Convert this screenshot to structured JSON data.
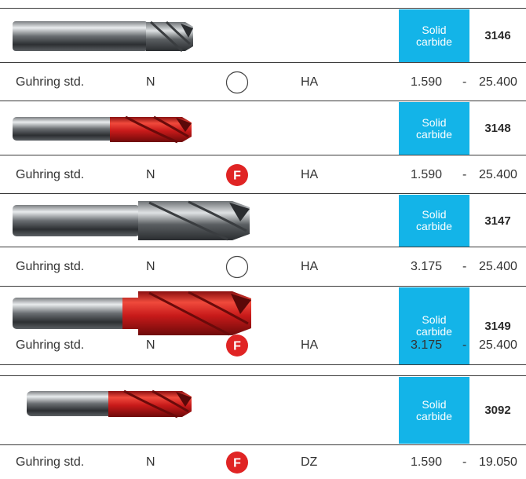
{
  "material_label_line1": "Solid",
  "material_label_line2": "carbide",
  "colors": {
    "material_bg": "#13b4e8",
    "coating_red": "#e02424",
    "rule": "#3a3a3a"
  },
  "products": [
    {
      "article": "3146",
      "standard": "Guhring std.",
      "tool_type": "N",
      "coating": "none",
      "coating_label": "",
      "shank": "HA",
      "d_min": "1.590",
      "dash": "-",
      "d_max": "25.400",
      "image": "uncoated-short-cutter"
    },
    {
      "article": "3148",
      "standard": "Guhring std.",
      "tool_type": "N",
      "coating": "fire",
      "coating_label": "F",
      "shank": "HA",
      "d_min": "1.590",
      "dash": "-",
      "d_max": "25.400",
      "image": "fire-coated-short-cutter"
    },
    {
      "article": "3147",
      "standard": "Guhring std.",
      "tool_type": "N",
      "coating": "none",
      "coating_label": "",
      "shank": "HA",
      "d_min": "3.175",
      "dash": "-",
      "d_max": "25.400",
      "image": "uncoated-long-cutter"
    },
    {
      "article": "3149",
      "standard": "Guhring std.",
      "tool_type": "N",
      "coating": "fire",
      "coating_label": "F",
      "shank": "HA",
      "d_min": "3.175",
      "dash": "-",
      "d_max": "25.400",
      "image": "fire-coated-long-cutter"
    },
    {
      "article": "3092",
      "standard": "Guhring std.",
      "tool_type": "N",
      "coating": "fire",
      "coating_label": "F",
      "shank": "DZ",
      "d_min": "1.590",
      "dash": "-",
      "d_max": "19.050",
      "image": "fire-coated-stub-cutter"
    }
  ]
}
